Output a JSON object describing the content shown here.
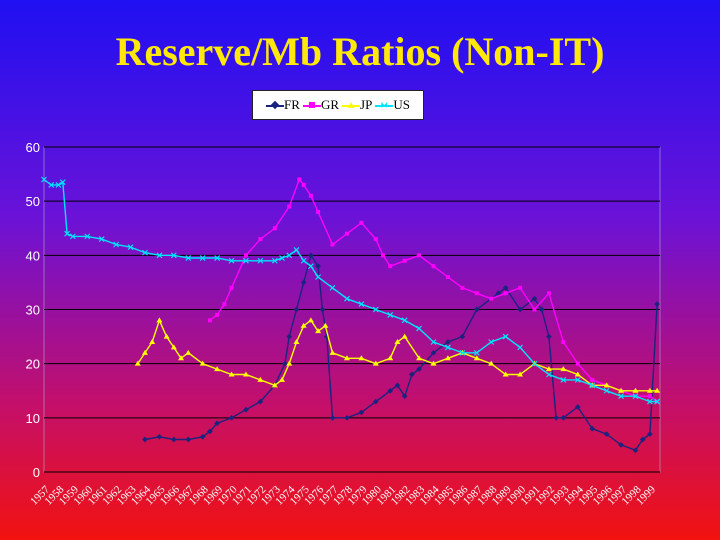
{
  "colors": {
    "FR": "#1a237e",
    "GR": "#ff00ff",
    "JP": "#ffff00",
    "US": "#00e5ff"
  },
  "chart_data": {
    "type": "line",
    "title": "Reserve/Mb Ratios (Non-IT)",
    "ylim": [
      0,
      60
    ],
    "yticks": [
      0,
      10,
      20,
      30,
      40,
      50,
      60
    ],
    "xlim": [
      1957,
      1999.7
    ],
    "xticks": [
      "1957",
      "1958",
      "1959",
      "1960",
      "1961",
      "1962",
      "1963",
      "1964",
      "1965",
      "1966",
      "1967",
      "1968",
      "1969",
      "1970",
      "1971",
      "1972",
      "1973",
      "1974",
      "1975",
      "1976",
      "1977",
      "1978",
      "1979",
      "1980",
      "1981",
      "1982",
      "1983",
      "1984",
      "1985",
      "1986",
      "1987",
      "1988",
      "1989",
      "1990",
      "1991",
      "1992",
      "1993",
      "1994",
      "1995",
      "1996",
      "1997",
      "1998",
      "1999"
    ],
    "grid": "horizontal",
    "legend_position": "top-center",
    "series": [
      {
        "name": "FR",
        "x": [
          1964.0,
          1965.0,
          1966.0,
          1967.0,
          1968.0,
          1968.5,
          1969.0,
          1970.0,
          1971.0,
          1972.0,
          1973.0,
          1973.7,
          1974.0,
          1974.5,
          1975.0,
          1975.5,
          1976.0,
          1976.3,
          1976.6,
          1977.0,
          1978.0,
          1979.0,
          1980.0,
          1981.0,
          1981.5,
          1982.0,
          1982.5,
          1983.0,
          1984.0,
          1985.0,
          1986.0,
          1987.0,
          1988.0,
          1988.5,
          1989.0,
          1990.0,
          1991.0,
          1991.5,
          1992.0,
          1992.5,
          1993.0,
          1994.0,
          1995.0,
          1996.0,
          1997.0,
          1998.0,
          1998.5,
          1999.0,
          1999.5
        ],
        "values": [
          6,
          6.5,
          6,
          6,
          6.5,
          7.5,
          9,
          10,
          11.5,
          13,
          16,
          20,
          25,
          30,
          35,
          40,
          38,
          30,
          25,
          10,
          10,
          11,
          13,
          15,
          16,
          14,
          18,
          19,
          22,
          24,
          25,
          30,
          32,
          33,
          34,
          30,
          32,
          30,
          25,
          10,
          10,
          12,
          8,
          7,
          5,
          4,
          6,
          7,
          31
        ]
      },
      {
        "name": "GR",
        "x": [
          1968.5,
          1969.0,
          1969.5,
          1970.0,
          1971.0,
          1972.0,
          1973.0,
          1974.0,
          1974.7,
          1975.0,
          1975.5,
          1976.0,
          1977.0,
          1978.0,
          1979.0,
          1980.0,
          1980.5,
          1981.0,
          1982.0,
          1983.0,
          1984.0,
          1985.0,
          1986.0,
          1987.0,
          1988.0,
          1989.0,
          1990.0,
          1991.0,
          1992.0,
          1993.0,
          1994.0,
          1995.0,
          1996.0,
          1997.0,
          1998.0,
          1999.0,
          1999.5
        ],
        "values": [
          28,
          29,
          31,
          34,
          40,
          43,
          45,
          49,
          54,
          53,
          51,
          48,
          42,
          44,
          46,
          43,
          40,
          38,
          39,
          40,
          38,
          36,
          34,
          33,
          32,
          33,
          34,
          30,
          33,
          24,
          20,
          17,
          16,
          15,
          14,
          14,
          13
        ]
      },
      {
        "name": "JP",
        "x": [
          1963.5,
          1964.0,
          1964.5,
          1965.0,
          1965.5,
          1966.0,
          1966.5,
          1967.0,
          1968.0,
          1969.0,
          1970.0,
          1971.0,
          1972.0,
          1973.0,
          1973.5,
          1974.0,
          1974.5,
          1975.0,
          1975.5,
          1976.0,
          1976.5,
          1977.0,
          1978.0,
          1979.0,
          1980.0,
          1981.0,
          1981.5,
          1982.0,
          1983.0,
          1984.0,
          1985.0,
          1986.0,
          1987.0,
          1988.0,
          1989.0,
          1990.0,
          1991.0,
          1992.0,
          1993.0,
          1994.0,
          1995.0,
          1996.0,
          1997.0,
          1998.0,
          1999.0,
          1999.5
        ],
        "values": [
          20,
          22,
          24,
          28,
          25,
          23,
          21,
          22,
          20,
          19,
          18,
          18,
          17,
          16,
          17,
          20,
          24,
          27,
          28,
          26,
          27,
          22,
          21,
          21,
          20,
          21,
          24,
          25,
          21,
          20,
          21,
          22,
          21,
          20,
          18,
          18,
          20,
          19,
          19,
          18,
          16,
          16,
          15,
          15,
          15,
          15
        ]
      },
      {
        "name": "US",
        "x": [
          1957.0,
          1957.5,
          1958.0,
          1958.3,
          1958.6,
          1959.0,
          1960.0,
          1961.0,
          1962.0,
          1963.0,
          1964.0,
          1965.0,
          1966.0,
          1967.0,
          1968.0,
          1969.0,
          1970.0,
          1971.0,
          1972.0,
          1973.0,
          1973.5,
          1974.0,
          1974.5,
          1975.0,
          1975.5,
          1976.0,
          1977.0,
          1978.0,
          1979.0,
          1980.0,
          1981.0,
          1982.0,
          1983.0,
          1984.0,
          1985.0,
          1986.0,
          1987.0,
          1988.0,
          1989.0,
          1990.0,
          1991.0,
          1992.0,
          1993.0,
          1994.0,
          1995.0,
          1996.0,
          1997.0,
          1998.0,
          1999.0,
          1999.5
        ],
        "values": [
          54,
          53,
          53,
          53.5,
          44,
          43.5,
          43.5,
          43,
          42,
          41.5,
          40.5,
          40,
          40,
          39.5,
          39.5,
          39.5,
          39,
          39,
          39,
          39,
          39.5,
          40,
          41,
          39,
          38,
          36,
          34,
          32,
          31,
          30,
          29,
          28,
          26.5,
          24,
          23,
          22,
          22,
          24,
          25,
          23,
          20,
          18,
          17,
          17,
          16,
          15,
          14,
          14,
          13,
          13
        ]
      }
    ]
  }
}
